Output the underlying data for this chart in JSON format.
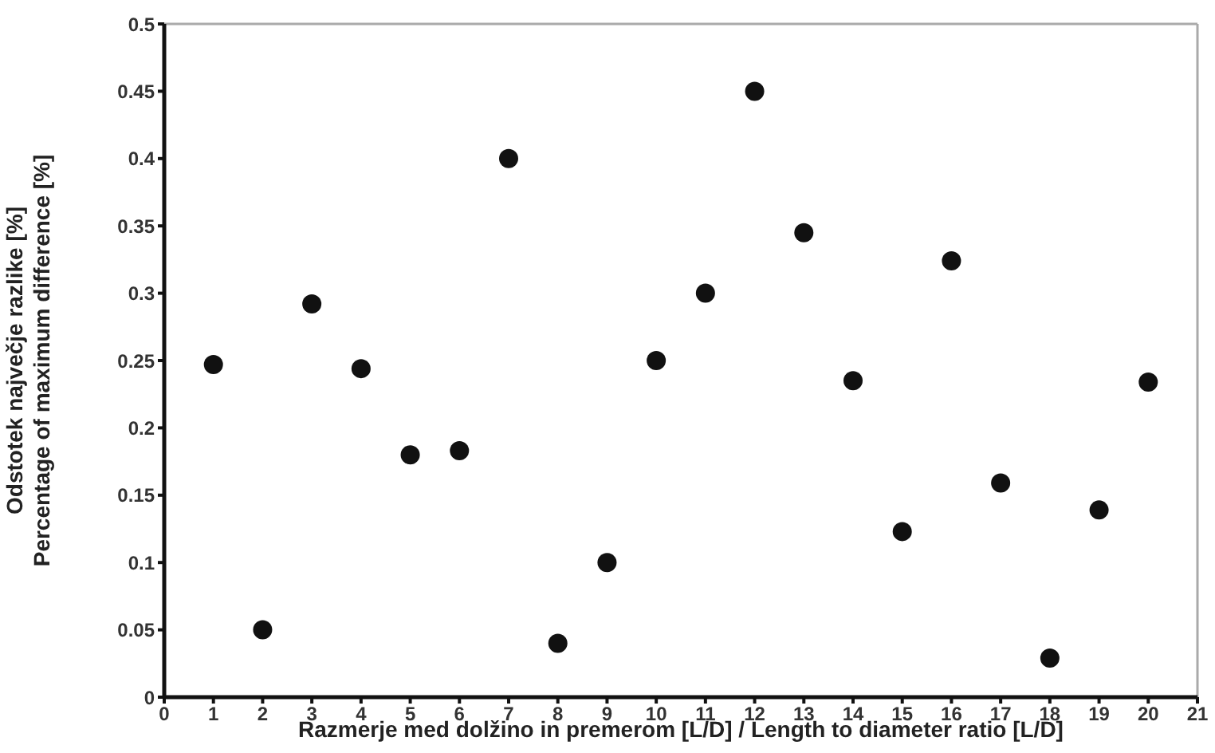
{
  "chart_data": {
    "type": "scatter",
    "xlabel": "Razmerje med dolžino in premerom [L/D] / Length to diameter ratio [L/D]",
    "ylabel": "Odstotek največje razlike  [%]\nPercentage of maximum difference [%]",
    "x": [
      1,
      2,
      3,
      4,
      5,
      6,
      7,
      8,
      9,
      10,
      11,
      12,
      13,
      14,
      15,
      16,
      17,
      18,
      19,
      20
    ],
    "series": [
      {
        "color": "#111111",
        "values": [
          0.247,
          0.05,
          0.292,
          0.244,
          0.18,
          0.183,
          0.4,
          0.04,
          0.1,
          0.25,
          0.3,
          0.45,
          0.345,
          0.235,
          0.123,
          0.324,
          0.159,
          0.029,
          0.139,
          0.234
        ]
      }
    ],
    "xlim": [
      0,
      21
    ],
    "xticks": [
      0,
      1,
      2,
      3,
      4,
      5,
      6,
      7,
      8,
      9,
      10,
      11,
      12,
      13,
      14,
      15,
      16,
      17,
      18,
      19,
      20,
      21
    ],
    "ylim": [
      0,
      0.5
    ],
    "yticks": [
      0,
      0.05,
      0.1,
      0.15,
      0.2,
      0.25,
      0.3,
      0.35,
      0.4,
      0.45,
      0.5
    ],
    "grid": false,
    "legend": false,
    "marker": "circle"
  }
}
